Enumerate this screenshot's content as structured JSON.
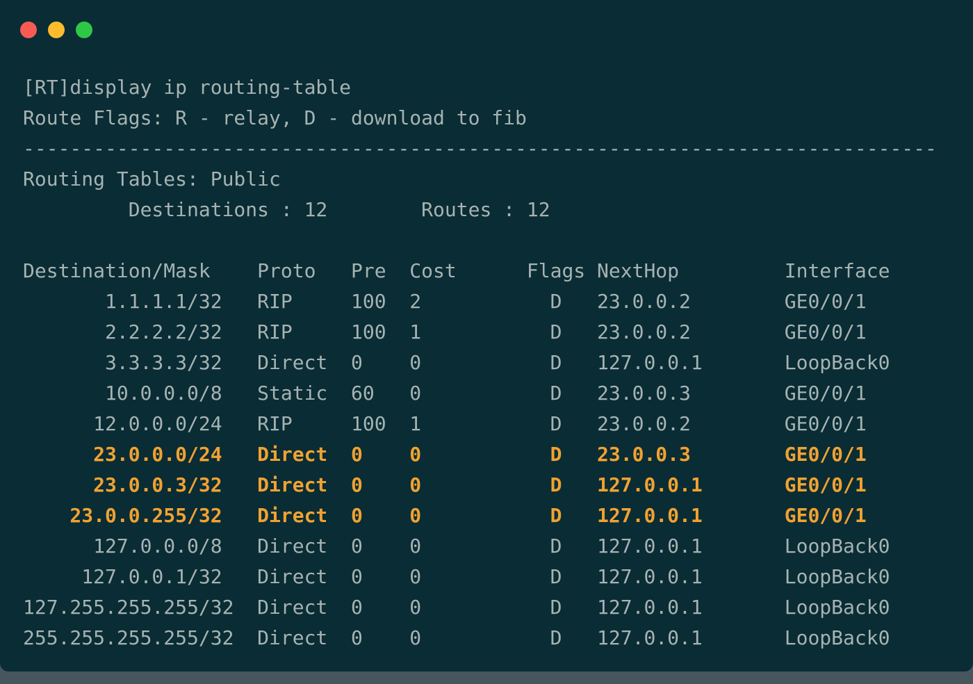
{
  "window": {
    "traffic_lights": [
      {
        "name": "close",
        "color": "#f75b53"
      },
      {
        "name": "minimize",
        "color": "#fcbc2d"
      },
      {
        "name": "maximize",
        "color": "#2fc846"
      }
    ]
  },
  "terminal": {
    "colors": {
      "background": "#0a2c34",
      "text": "#a6b3b3",
      "highlight": "#f0a232"
    },
    "command": "[RT]display ip routing-table",
    "route_flags_line": "Route Flags: R - relay, D - download to fib",
    "separator": "------------------------------------------------------------------------------",
    "routing_tables_line": "Routing Tables: Public",
    "summary": {
      "destinations": "12",
      "routes": "12"
    },
    "summary_line": "         Destinations : 12        Routes : 12",
    "columns": [
      "Destination/Mask",
      "Proto",
      "Pre",
      "Cost",
      "Flags",
      "NextHop",
      "Interface"
    ],
    "table_header": "Destination/Mask    Proto   Pre  Cost      Flags NextHop         Interface",
    "routes": [
      {
        "destination_mask": "1.1.1.1/32",
        "proto": "RIP",
        "pre": "100",
        "cost": "2",
        "flags": "D",
        "next_hop": "23.0.0.2",
        "interface": "GE0/0/1",
        "highlighted": false
      },
      {
        "destination_mask": "2.2.2.2/32",
        "proto": "RIP",
        "pre": "100",
        "cost": "1",
        "flags": "D",
        "next_hop": "23.0.0.2",
        "interface": "GE0/0/1",
        "highlighted": false
      },
      {
        "destination_mask": "3.3.3.3/32",
        "proto": "Direct",
        "pre": "0",
        "cost": "0",
        "flags": "D",
        "next_hop": "127.0.0.1",
        "interface": "LoopBack0",
        "highlighted": false
      },
      {
        "destination_mask": "10.0.0.0/8",
        "proto": "Static",
        "pre": "60",
        "cost": "0",
        "flags": "D",
        "next_hop": "23.0.0.3",
        "interface": "GE0/0/1",
        "highlighted": false
      },
      {
        "destination_mask": "12.0.0.0/24",
        "proto": "RIP",
        "pre": "100",
        "cost": "1",
        "flags": "D",
        "next_hop": "23.0.0.2",
        "interface": "GE0/0/1",
        "highlighted": false
      },
      {
        "destination_mask": "23.0.0.0/24",
        "proto": "Direct",
        "pre": "0",
        "cost": "0",
        "flags": "D",
        "next_hop": "23.0.0.3",
        "interface": "GE0/0/1",
        "highlighted": true
      },
      {
        "destination_mask": "23.0.0.3/32",
        "proto": "Direct",
        "pre": "0",
        "cost": "0",
        "flags": "D",
        "next_hop": "127.0.0.1",
        "interface": "GE0/0/1",
        "highlighted": true
      },
      {
        "destination_mask": "23.0.0.255/32",
        "proto": "Direct",
        "pre": "0",
        "cost": "0",
        "flags": "D",
        "next_hop": "127.0.0.1",
        "interface": "GE0/0/1",
        "highlighted": true
      },
      {
        "destination_mask": "127.0.0.0/8",
        "proto": "Direct",
        "pre": "0",
        "cost": "0",
        "flags": "D",
        "next_hop": "127.0.0.1",
        "interface": "LoopBack0",
        "highlighted": false
      },
      {
        "destination_mask": "127.0.0.1/32",
        "proto": "Direct",
        "pre": "0",
        "cost": "0",
        "flags": "D",
        "next_hop": "127.0.0.1",
        "interface": "LoopBack0",
        "highlighted": false
      },
      {
        "destination_mask": "127.255.255.255/32",
        "proto": "Direct",
        "pre": "0",
        "cost": "0",
        "flags": "D",
        "next_hop": "127.0.0.1",
        "interface": "LoopBack0",
        "highlighted": false
      },
      {
        "destination_mask": "255.255.255.255/32",
        "proto": "Direct",
        "pre": "0",
        "cost": "0",
        "flags": "D",
        "next_hop": "127.0.0.1",
        "interface": "LoopBack0",
        "highlighted": false
      }
    ]
  }
}
